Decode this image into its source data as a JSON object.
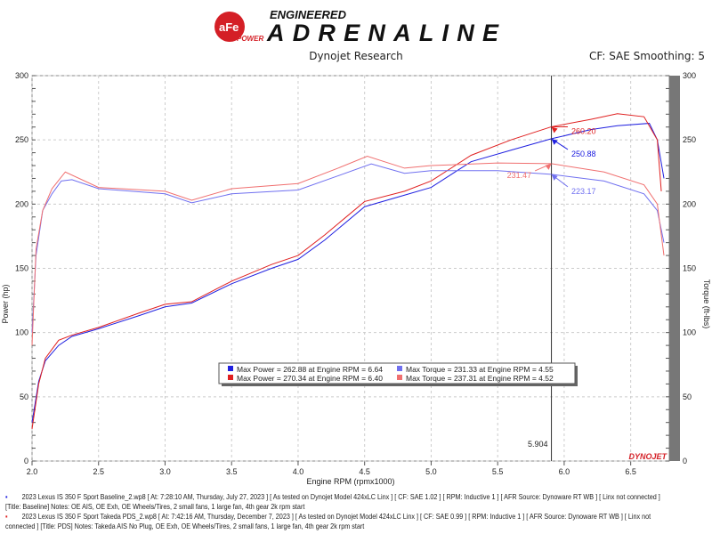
{
  "header": {
    "logo_text_top": "ENGINEERED",
    "logo_text_main": "ADRENALINE",
    "logo_badge": "aFe POWER",
    "subtitle": "Dynojet Research",
    "cf_smoothing": "CF: SAE Smoothing: 5"
  },
  "chart_data": {
    "type": "line",
    "xlabel": "Engine RPM (rpmx1000)",
    "ylabel": "Power (hp)",
    "y2label": "Torque (ft-lbs)",
    "xlim": [
      2.0,
      6.79
    ],
    "ylim": [
      0,
      300
    ],
    "y2lim": [
      0,
      300
    ],
    "xticks": [
      "2.0",
      "2.5",
      "3.0",
      "3.5",
      "4.0",
      "4.5",
      "5.0",
      "5.5",
      "6.0",
      "6.5"
    ],
    "yticks": [
      "0",
      "50",
      "100",
      "150",
      "200",
      "250",
      "300"
    ],
    "grid": true,
    "legend_placement": "center-bottom",
    "cursor": {
      "x": 5.904,
      "label": "5.904"
    },
    "brand": "DYNOJET",
    "series": [
      {
        "name": "Max Power = 262.88 at Engine RPM = 6.64",
        "color": "#2020e0",
        "x": [
          2.0,
          2.05,
          2.1,
          2.2,
          2.3,
          2.5,
          2.8,
          3.0,
          3.2,
          3.5,
          3.8,
          4.0,
          4.2,
          4.5,
          4.8,
          5.0,
          5.3,
          5.6,
          5.904,
          6.2,
          6.4,
          6.64,
          6.7,
          6.75
        ],
        "y": [
          30,
          62,
          78,
          90,
          97,
          103,
          113,
          120,
          123,
          138,
          150,
          157,
          172,
          198,
          207,
          213,
          233,
          242,
          250.88,
          258,
          261,
          262.88,
          250,
          220
        ]
      },
      {
        "name": "Max Power = 270.34 at Engine RPM = 6.40",
        "color": "#e02020",
        "x": [
          2.0,
          2.05,
          2.1,
          2.2,
          2.3,
          2.5,
          2.8,
          3.0,
          3.2,
          3.5,
          3.8,
          4.0,
          4.2,
          4.5,
          4.8,
          5.0,
          5.3,
          5.6,
          5.904,
          6.2,
          6.4,
          6.6,
          6.7,
          6.73
        ],
        "y": [
          25,
          60,
          80,
          94,
          98,
          104,
          115,
          122,
          124,
          140,
          153,
          160,
          176,
          202,
          210,
          218,
          238,
          250,
          260.2,
          266,
          270.34,
          268,
          250,
          210
        ]
      },
      {
        "name": "Max Torque = 231.33 at Engine RPM = 4.55",
        "color": "#7070f0",
        "x": [
          2.0,
          2.03,
          2.08,
          2.15,
          2.22,
          2.3,
          2.5,
          3.0,
          3.2,
          3.5,
          4.0,
          4.3,
          4.55,
          4.8,
          5.0,
          5.5,
          5.904,
          6.3,
          6.6,
          6.7,
          6.75
        ],
        "y": [
          100,
          160,
          195,
          208,
          218,
          219,
          212,
          208,
          201,
          208,
          211,
          222,
          231.33,
          224,
          226,
          226,
          223.17,
          218,
          208,
          195,
          170
        ]
      },
      {
        "name": "Max Torque = 237.31 at Engine RPM = 4.52",
        "color": "#f07070",
        "x": [
          2.0,
          2.03,
          2.08,
          2.15,
          2.25,
          2.5,
          3.0,
          3.2,
          3.5,
          4.0,
          4.3,
          4.52,
          4.8,
          5.0,
          5.5,
          5.904,
          6.3,
          6.6,
          6.7,
          6.75
        ],
        "y": [
          90,
          165,
          195,
          212,
          225,
          213,
          210,
          203,
          212,
          216,
          228,
          237.31,
          228,
          230,
          232,
          231.47,
          225,
          215,
          200,
          160
        ]
      }
    ],
    "annotations": [
      {
        "text": "260.20",
        "x": 5.904,
        "y": 260.2,
        "color": "#e02020"
      },
      {
        "text": "250.88",
        "x": 5.904,
        "y": 250.88,
        "color": "#2020e0"
      },
      {
        "text": "231.47",
        "x": 5.904,
        "y": 231.47,
        "color": "#f07070"
      },
      {
        "text": "223.17",
        "x": 5.904,
        "y": 223.17,
        "color": "#7070f0"
      }
    ]
  },
  "notes": [
    {
      "color": "#2020e0",
      "line1": "2023 Lexus IS 350 F Sport Baseline_2.wp8 [ At: 7:28:10 AM, Thursday, July 27, 2023 ] [ As tested on Dynojet Model 424xLC Linx ] [ CF: SAE 1.02 ] [ RPM: Inductive 1 ] [ AFR Source: Dynoware RT WB ] [ Linx not connected ]",
      "line2": "[Title: Baseline]  Notes: OE AIS, OE Exh, OE Wheels/Tires, 2 small fans, 1 large fan, 4th gear 2k rpm start"
    },
    {
      "color": "#e02020",
      "line1": "2023 Lexus IS 350 F Sport Takeda PDS_2.wp8 [ At: 7:42:16 AM, Thursday, December 7, 2023 ] [ As tested on Dynojet Model 424xLC Linx ] [ CF: SAE 0.99 ] [ RPM: Inductive 1 ] [ AFR Source: Dynoware RT WB ] [ Linx not",
      "line2": "connected ] [Title: PDS]  Notes: Takeda AIS No Plug, OE Exh, OE Wheels/Tires, 2 small fans, 1 large fan, 4th gear 2k rpm start"
    }
  ]
}
